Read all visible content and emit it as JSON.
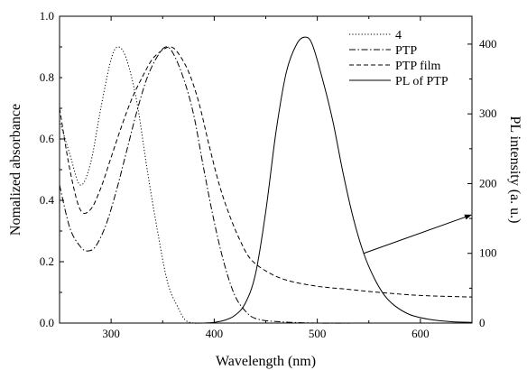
{
  "chart_data": {
    "type": "line",
    "title": "",
    "xlabel": "Wavelength (nm)",
    "ylabel_left": "Nomalized absorbance",
    "ylabel_right": "PL intensity (a. u.)",
    "xlim": [
      250,
      650
    ],
    "ylim_left": [
      0,
      1.0
    ],
    "ylim_right": [
      0,
      440
    ],
    "x_ticks": [
      300,
      400,
      500,
      600
    ],
    "y_ticks_left": [
      "0.0",
      "0.2",
      "0.4",
      "0.6",
      "0.8",
      "1.0"
    ],
    "y_ticks_right": [
      "0",
      "100",
      "200",
      "300",
      "400"
    ],
    "grid": false,
    "legend_position": "top-right",
    "series": [
      {
        "name": "4",
        "axis": "left",
        "style": "dotted",
        "x": [
          250,
          260,
          270,
          280,
          290,
          300,
          307,
          315,
          325,
          335,
          345,
          355,
          365,
          372,
          380,
          390,
          400,
          420,
          450,
          500,
          550,
          600,
          650
        ],
        "y": [
          0.66,
          0.55,
          0.45,
          0.52,
          0.7,
          0.86,
          0.9,
          0.86,
          0.72,
          0.5,
          0.3,
          0.13,
          0.05,
          0.01,
          0.0,
          0.0,
          0.0,
          0.0,
          0.0,
          0.0,
          0.0,
          0.0,
          0.0
        ]
      },
      {
        "name": "PTP",
        "axis": "left",
        "style": "dashdot",
        "x": [
          250,
          260,
          270,
          277,
          285,
          295,
          305,
          315,
          325,
          335,
          345,
          353,
          360,
          370,
          380,
          390,
          400,
          410,
          420,
          430,
          440,
          460,
          500,
          550,
          600,
          650
        ],
        "y": [
          0.45,
          0.31,
          0.25,
          0.235,
          0.25,
          0.32,
          0.43,
          0.56,
          0.69,
          0.8,
          0.87,
          0.9,
          0.88,
          0.8,
          0.68,
          0.5,
          0.33,
          0.19,
          0.09,
          0.04,
          0.015,
          0.005,
          0.0,
          0.0,
          0.0,
          0.0
        ]
      },
      {
        "name": "PTP film",
        "axis": "left",
        "style": "dashed",
        "x": [
          250,
          260,
          270,
          280,
          290,
          300,
          310,
          320,
          330,
          340,
          350,
          358,
          365,
          375,
          385,
          395,
          405,
          415,
          425,
          435,
          450,
          470,
          500,
          530,
          560,
          600,
          650
        ],
        "y": [
          0.7,
          0.5,
          0.37,
          0.37,
          0.44,
          0.54,
          0.64,
          0.73,
          0.8,
          0.86,
          0.89,
          0.9,
          0.88,
          0.82,
          0.72,
          0.58,
          0.45,
          0.35,
          0.27,
          0.21,
          0.17,
          0.14,
          0.12,
          0.11,
          0.1,
          0.09,
          0.085
        ]
      },
      {
        "name": "PL of PTP",
        "axis": "right",
        "style": "solid",
        "x": [
          390,
          400,
          410,
          420,
          430,
          440,
          450,
          460,
          470,
          480,
          488,
          495,
          505,
          515,
          525,
          535,
          545,
          555,
          565,
          575,
          590,
          610,
          630,
          650
        ],
        "y": [
          0,
          1,
          4,
          11,
          28,
          70,
          160,
          275,
          360,
          400,
          410,
          400,
          350,
          290,
          215,
          150,
          100,
          65,
          40,
          25,
          12,
          5,
          2,
          1
        ]
      }
    ],
    "annotations": [
      {
        "type": "arrow",
        "from_x": 545,
        "from_y_right": 100,
        "to_x": 650,
        "to_y_right": 155
      }
    ]
  }
}
